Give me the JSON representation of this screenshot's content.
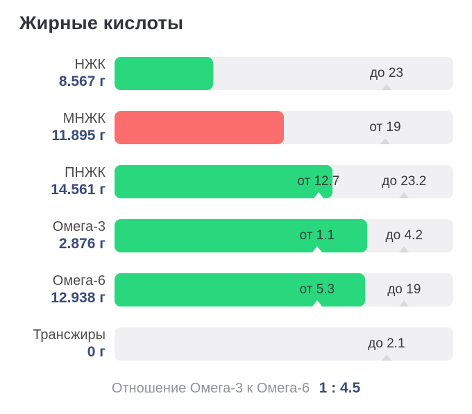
{
  "title": "Жирные кислоты",
  "colors": {
    "green": "#29d87d",
    "red": "#fc6e6e",
    "track": "#f0f0f2",
    "marker_gray": "#d9d9dc",
    "value_navy": "#3b4b7e"
  },
  "chart_data": {
    "type": "bar",
    "title": "Жирные кислоты",
    "orientation": "horizontal",
    "unit": "г",
    "rows": [
      {
        "label": "НЖК",
        "value": 8.567,
        "value_text": "8.567 г",
        "fill": "green",
        "fill_pct": 29.1,
        "norm_max": 23,
        "markers": [
          {
            "text": "до 23",
            "pos_pct": 80.3,
            "on_fill": false
          }
        ]
      },
      {
        "label": "МНЖК",
        "value": 11.895,
        "value_text": "11.895 г",
        "fill": "red",
        "fill_pct": 50.0,
        "norm_min": 19,
        "markers": [
          {
            "text": "от 19",
            "pos_pct": 79.9,
            "on_fill": false
          }
        ]
      },
      {
        "label": "ПНЖК",
        "value": 14.561,
        "value_text": "14.561 г",
        "fill": "green",
        "fill_pct": 64.3,
        "norm_min": 12.7,
        "norm_max": 23.2,
        "markers": [
          {
            "text": "от 12.7",
            "pos_pct": 60.2,
            "on_fill": true
          },
          {
            "text": "до 23.2",
            "pos_pct": 85.5,
            "on_fill": false
          }
        ]
      },
      {
        "label": "Омега-3",
        "value": 2.876,
        "value_text": "2.876 г",
        "fill": "green",
        "fill_pct": 74.6,
        "norm_min": 1.1,
        "norm_max": 4.2,
        "markers": [
          {
            "text": "от 1.1",
            "pos_pct": 59.8,
            "on_fill": true
          },
          {
            "text": "до 4.2",
            "pos_pct": 85.5,
            "on_fill": false
          }
        ]
      },
      {
        "label": "Омега-6",
        "value": 12.938,
        "value_text": "12.938 г",
        "fill": "green",
        "fill_pct": 74.0,
        "norm_min": 5.3,
        "norm_max": 19,
        "markers": [
          {
            "text": "от 5.3",
            "pos_pct": 59.8,
            "on_fill": true
          },
          {
            "text": "до 19",
            "pos_pct": 85.5,
            "on_fill": false
          }
        ]
      },
      {
        "label": "Трансжиры",
        "value": 0,
        "value_text": "0 г",
        "fill": null,
        "fill_pct": 0,
        "norm_max": 2.1,
        "markers": [
          {
            "text": "до 2.1",
            "pos_pct": 80.3,
            "on_fill": false
          }
        ]
      }
    ],
    "footer": {
      "label": "Отношение Омега-3 к Омега-6",
      "value": "1 : 4.5"
    }
  }
}
